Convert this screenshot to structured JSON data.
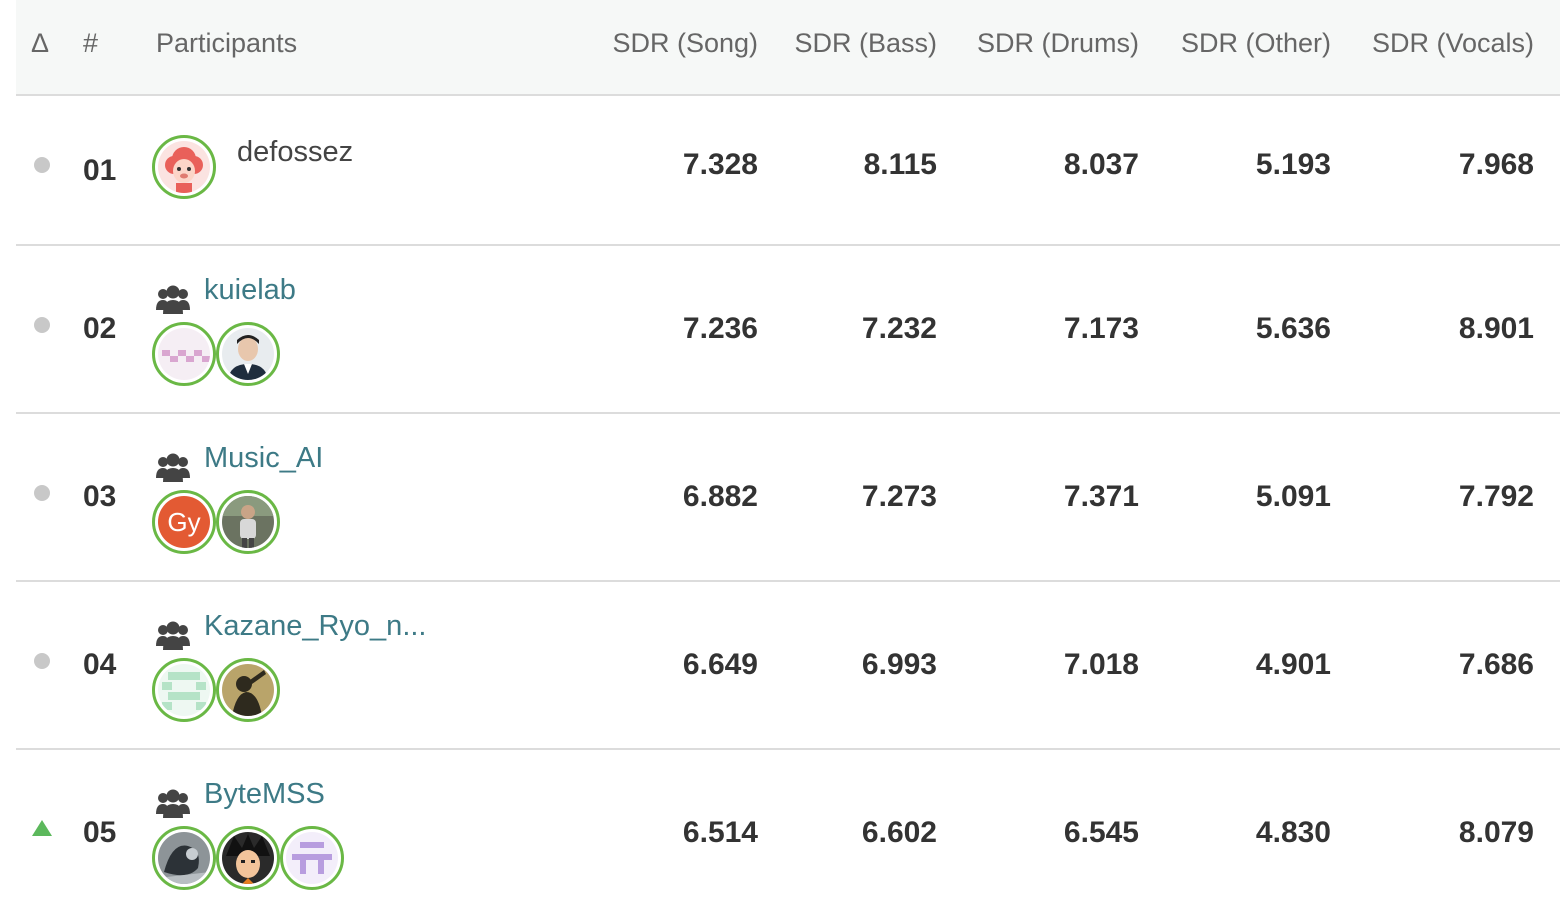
{
  "header": {
    "delta": "Δ",
    "rank": "#",
    "participants": "Participants",
    "cols": [
      "SDR (Song)",
      "SDR (Bass)",
      "SDR (Drums)",
      "SDR (Other)",
      "SDR (Vocals)"
    ]
  },
  "rows": [
    {
      "trend": "same",
      "rank": "01",
      "name": "defossez",
      "team": false,
      "avatars": [
        "sheep-avatar"
      ],
      "values": [
        "7.328",
        "8.115",
        "8.037",
        "5.193",
        "7.968"
      ]
    },
    {
      "trend": "same",
      "rank": "02",
      "name": "kuielab",
      "team": true,
      "avatars": [
        "pink-pattern-avatar",
        "man-in-suit-avatar"
      ],
      "values": [
        "7.236",
        "7.232",
        "7.173",
        "5.636",
        "8.901"
      ]
    },
    {
      "trend": "same",
      "rank": "03",
      "name": "Music_AI",
      "team": true,
      "avatars": [
        "gy-initials-avatar",
        "person-photo-avatar"
      ],
      "avatar_text": "Gy",
      "values": [
        "6.882",
        "7.273",
        "7.371",
        "5.091",
        "7.792"
      ]
    },
    {
      "trend": "same",
      "rank": "04",
      "name": "Kazane_Ryo_n...",
      "team": true,
      "avatars": [
        "green-pattern-avatar",
        "silhouette-photo-avatar"
      ],
      "values": [
        "6.649",
        "6.993",
        "7.018",
        "4.901",
        "7.686"
      ]
    },
    {
      "trend": "up",
      "rank": "05",
      "name": "ByteMSS",
      "team": true,
      "avatars": [
        "dark-photo-avatar",
        "anime-avatar",
        "purple-pattern-avatar"
      ],
      "values": [
        "6.514",
        "6.602",
        "6.545",
        "4.830",
        "8.079"
      ]
    }
  ],
  "colors": {
    "accent_green": "#6ab845",
    "team_link": "#3d7a86",
    "up_arrow": "#5cb85c"
  }
}
